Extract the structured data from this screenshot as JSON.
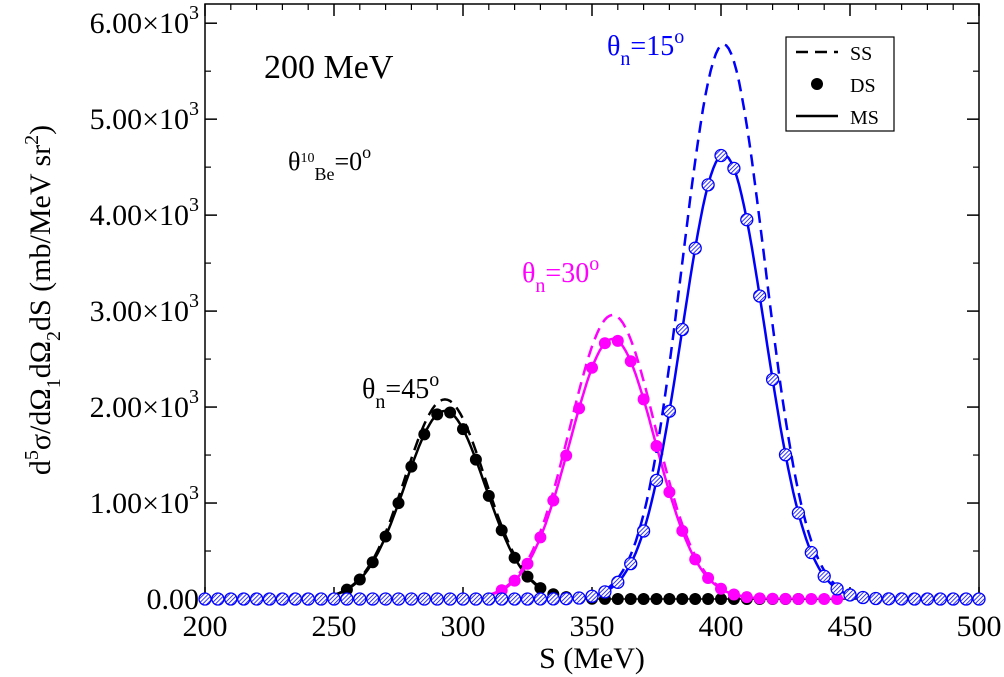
{
  "chart_data": {
    "type": "line",
    "title": "200 MeV",
    "xlabel": "S (MeV)",
    "ylabel": {
      "main": "d",
      "sup1": "5",
      "mid": "σ/dΩ",
      "sub1": "1",
      "mid2": "dΩ",
      "sub2": "2",
      "end": "dS  (mb/MeV sr",
      "sup2": "2",
      "close": ")"
    },
    "xlim": [
      200,
      500
    ],
    "ylim": [
      0,
      6200
    ],
    "xticks": [
      200,
      250,
      300,
      350,
      400,
      450,
      500
    ],
    "xtick_labels": [
      "200",
      "250",
      "300",
      "350",
      "400",
      "450",
      "500"
    ],
    "yticks": [
      0,
      1000,
      2000,
      3000,
      4000,
      5000,
      6000
    ],
    "ytick_labels": [
      {
        "mant": "0.00",
        "exp": ""
      },
      {
        "mant": "1.00×10",
        "exp": "3"
      },
      {
        "mant": "2.00×10",
        "exp": "3"
      },
      {
        "mant": "3.00×10",
        "exp": "3"
      },
      {
        "mant": "4.00×10",
        "exp": "3"
      },
      {
        "mant": "5.00×10",
        "exp": "3"
      },
      {
        "mant": "6.00×10",
        "exp": "3"
      }
    ],
    "annotation_be": {
      "pre": "θ",
      "sub": "10",
      "sub2": "Be",
      "post": "=0",
      "sup": "o"
    },
    "legend": {
      "placement": "top-right",
      "entries": [
        {
          "label": "SS",
          "style": "dashed"
        },
        {
          "label": "DS",
          "style": "dots"
        },
        {
          "label": "MS",
          "style": "solid"
        }
      ]
    },
    "series": [
      {
        "name": "θn=45°",
        "label_pre": "θ",
        "label_sub": "n",
        "label_post": "=45",
        "label_sup": "o",
        "color": "#000000",
        "marker": "filled",
        "mu": 293,
        "sigma": 15.5,
        "ss_peak": 2080,
        "ms_peak": 1960,
        "dots_x": [
          255,
          260,
          265,
          270,
          275,
          280,
          285,
          290,
          295,
          300,
          305,
          310,
          315,
          320,
          325,
          330,
          335,
          340,
          345,
          350,
          355,
          360,
          365,
          370,
          375,
          380,
          385,
          390,
          395,
          400,
          405,
          410,
          415,
          420,
          425,
          430
        ],
        "range": [
          250,
          330
        ]
      },
      {
        "name": "θn=30°",
        "label_pre": "θ",
        "label_sub": "n",
        "label_post": "=30",
        "label_sup": "o",
        "color": "#ff00ff",
        "marker": "filled",
        "mu": 358,
        "sigma": 16.5,
        "ss_peak": 2960,
        "ms_peak": 2710,
        "dots_x": [
          315,
          320,
          325,
          330,
          335,
          340,
          345,
          350,
          355,
          360,
          365,
          370,
          375,
          380,
          385,
          390,
          395,
          400,
          405,
          410,
          415,
          420,
          425,
          430,
          435,
          440,
          445
        ],
        "range": [
          310,
          450
        ]
      },
      {
        "name": "θn=15°",
        "label_pre": "θ",
        "label_sub": "n",
        "label_post": "=15",
        "label_sup": "o",
        "color": "#0000ff",
        "marker": "hatched",
        "mu": 401,
        "sigma": 16.0,
        "ss_peak": 5780,
        "ms_peak": 4630,
        "dots_x": [
          200,
          205,
          210,
          215,
          220,
          225,
          230,
          235,
          240,
          245,
          250,
          255,
          260,
          265,
          270,
          275,
          280,
          285,
          290,
          295,
          300,
          305,
          310,
          315,
          320,
          325,
          330,
          335,
          340,
          345,
          350,
          355,
          360,
          365,
          370,
          375,
          380,
          385,
          390,
          395,
          400,
          405,
          410,
          415,
          420,
          425,
          430,
          435,
          440,
          445,
          450,
          455,
          460,
          465,
          470,
          475,
          480,
          485,
          490,
          495,
          500
        ],
        "range": [
          200,
          500
        ]
      }
    ]
  }
}
